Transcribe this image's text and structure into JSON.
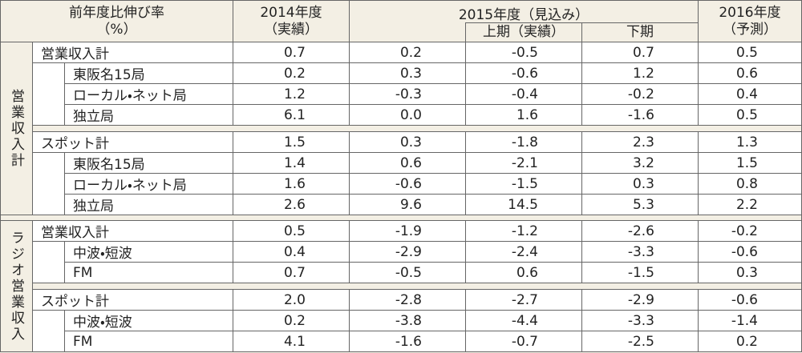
{
  "header": {
    "label": [
      "前年度比伸び率",
      "（%）"
    ],
    "col2014": [
      "2014年度",
      "（実績）"
    ],
    "col2015": "2015年度（見込み）",
    "col2015_sub": [
      "上期（実績）",
      "下期"
    ],
    "col2016": [
      "2016年度",
      "（予測）"
    ]
  },
  "sections": [
    {
      "label": "営業収入計",
      "groups": [
        {
          "total": {
            "label": "営業収入計",
            "values": [
              "0.7",
              "0.2",
              "-0.5",
              "0.7",
              "0.5"
            ]
          },
          "items": [
            {
              "label": "東阪名15局",
              "values": [
                "0.2",
                "0.3",
                "-0.6",
                "1.2",
                "0.6"
              ]
            },
            {
              "label": "ローカル・ネット局",
              "values": [
                "1.2",
                "-0.3",
                "-0.4",
                "-0.2",
                "0.4"
              ]
            },
            {
              "label": "独立局",
              "values": [
                "6.1",
                "0.0",
                "1.6",
                "-1.6",
                "0.5"
              ]
            }
          ]
        },
        {
          "total": {
            "label": "スポット計",
            "values": [
              "1.5",
              "0.3",
              "-1.8",
              "2.3",
              "1.3"
            ]
          },
          "items": [
            {
              "label": "東阪名15局",
              "values": [
                "1.4",
                "0.6",
                "-2.1",
                "3.2",
                "1.5"
              ]
            },
            {
              "label": "ローカル・ネット局",
              "values": [
                "1.6",
                "-0.6",
                "-1.5",
                "0.3",
                "0.8"
              ]
            },
            {
              "label": "独立局",
              "values": [
                "2.6",
                "9.6",
                "14.5",
                "5.3",
                "2.2"
              ]
            }
          ]
        }
      ]
    },
    {
      "label": "ラジオ営業収入",
      "groups": [
        {
          "total": {
            "label": "営業収入計",
            "values": [
              "0.5",
              "-1.9",
              "-1.2",
              "-2.6",
              "-0.2"
            ]
          },
          "items": [
            {
              "label": "中波・短波",
              "values": [
                "0.4",
                "-2.9",
                "-2.4",
                "-3.3",
                "-0.6"
              ]
            },
            {
              "label": "FM",
              "values": [
                "0.7",
                "-0.5",
                "0.6",
                "-1.5",
                "0.3"
              ]
            }
          ]
        },
        {
          "total": {
            "label": "スポット計",
            "values": [
              "2.0",
              "-2.8",
              "-2.7",
              "-2.9",
              "-0.6"
            ]
          },
          "items": [
            {
              "label": "中波・短波",
              "values": [
                "0.2",
                "-3.8",
                "-4.4",
                "-3.3",
                "-1.4"
              ]
            },
            {
              "label": "FM",
              "values": [
                "4.1",
                "-1.6",
                "-0.7",
                "-2.5",
                "0.2"
              ]
            }
          ]
        }
      ]
    }
  ]
}
